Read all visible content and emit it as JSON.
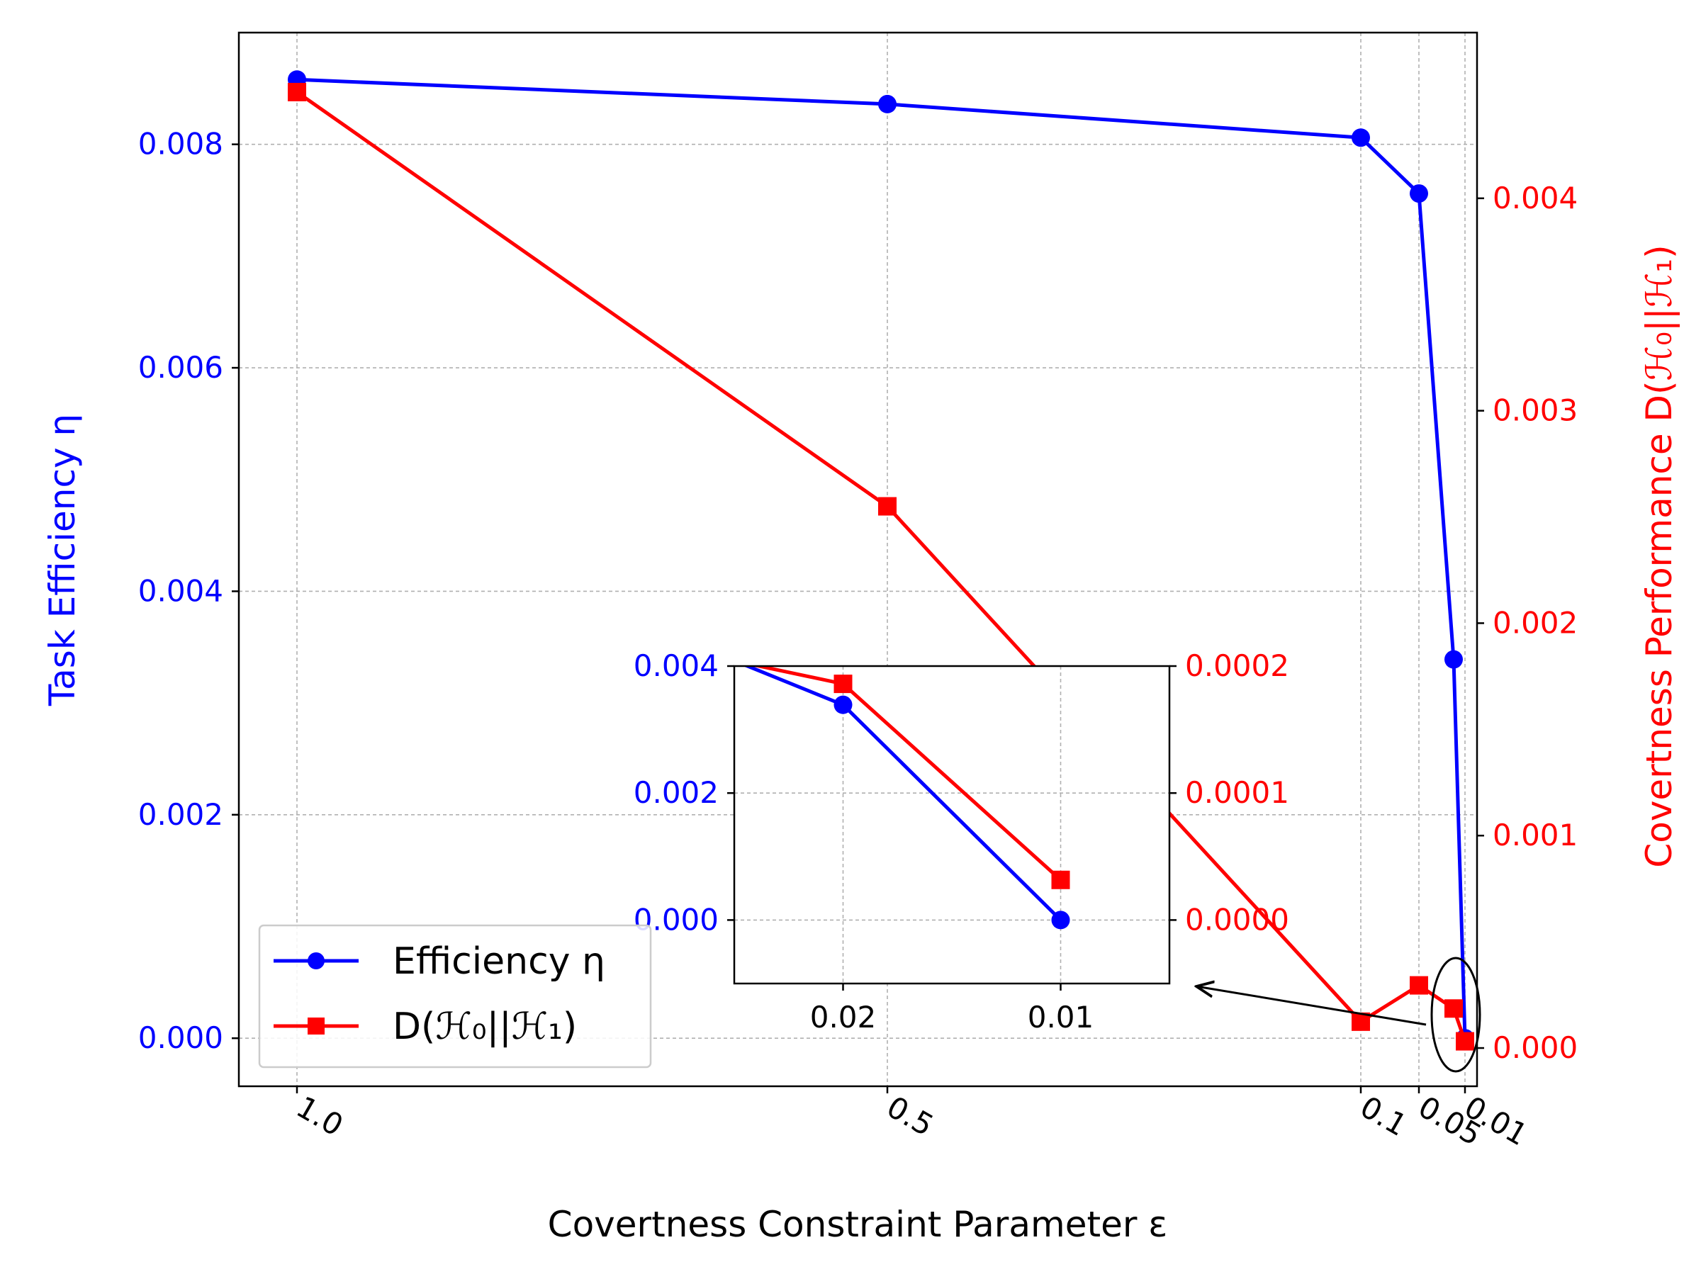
{
  "chart_data": {
    "type": "line",
    "main": {
      "xlabel": "Covertness Constraint Parameter ε",
      "ylabel_left": "Task Efficiency η",
      "ylabel_right": "Covertness Performance D(ℋ₀||ℋ₁)",
      "x_ticks": [
        "1.0",
        "0.5",
        "0.1",
        "0.05",
        "0.01"
      ],
      "x_reversed": true,
      "grid": true,
      "ylim_left": [
        -0.00043,
        0.009
      ],
      "yticks_left": [
        "0.000",
        "0.002",
        "0.004",
        "0.006",
        "0.008"
      ],
      "ylim_right": [
        -0.00018,
        0.00478
      ],
      "yticks_right": [
        "0.000",
        "0.001",
        "0.002",
        "0.003",
        "0.004"
      ],
      "legend_position": "lower-left",
      "series": [
        {
          "name": "Efficiency η",
          "axis": "left",
          "color": "#0000ff",
          "marker": "circle",
          "x": [
            1.0,
            0.5,
            0.1,
            0.05,
            0.02,
            0.01
          ],
          "y": [
            0.00858,
            0.00836,
            0.00806,
            0.00756,
            0.00339,
            0.0
          ]
        },
        {
          "name": "D(ℋ₀||ℋ₁)",
          "axis": "right",
          "color": "#ff0000",
          "marker": "square",
          "x": [
            1.0,
            0.5,
            0.1,
            0.05,
            0.02,
            0.01
          ],
          "y": [
            0.0045,
            0.00255,
            0.000124,
            0.000295,
            0.000186,
            3.16e-05
          ]
        }
      ]
    },
    "inset": {
      "x_ticks": [
        "0.02",
        "0.01"
      ],
      "xlim": [
        0.025,
        0.005
      ],
      "ylim_left": [
        -0.001,
        0.004
      ],
      "yticks_left": [
        "0.000",
        "0.002",
        "0.004"
      ],
      "ylim_right": [
        -5e-05,
        0.0002
      ],
      "yticks_right": [
        "0.0000",
        "0.0001",
        "0.0002"
      ],
      "grid": true
    }
  }
}
